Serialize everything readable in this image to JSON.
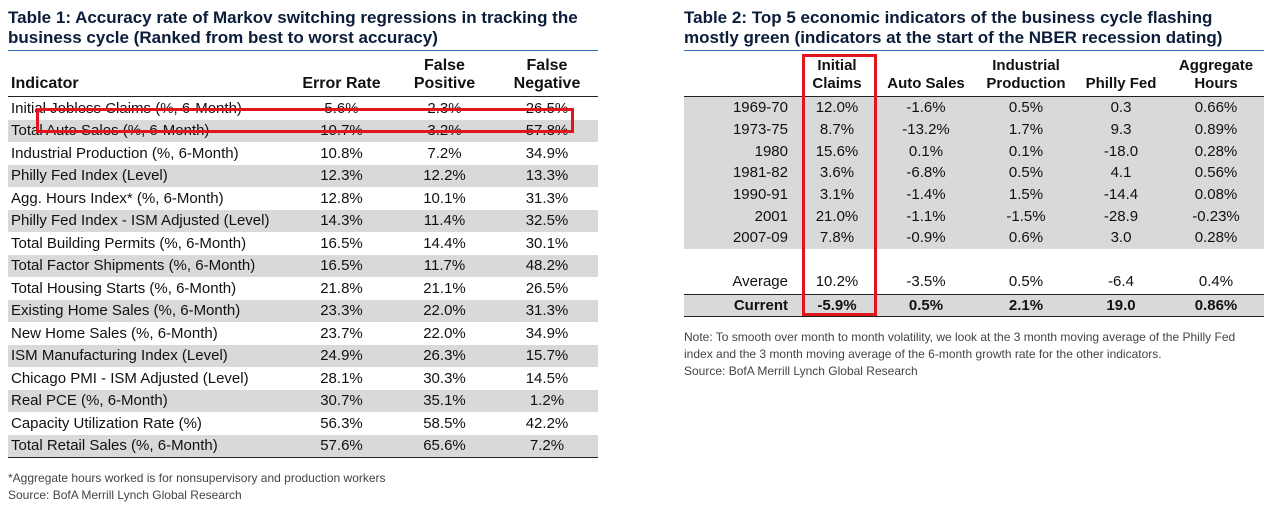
{
  "table1": {
    "title": "Table 1: Accuracy rate of Markov switching regressions in tracking the business cycle (Ranked from best to worst accuracy)",
    "headers": {
      "indicator": "Indicator",
      "error_rate": "Error Rate",
      "false_positive": "False Positive",
      "false_negative": "False Negative"
    },
    "rows": [
      {
        "indicator": "Initial Jobless Claims (%, 6-Month)",
        "error_rate": "5.6%",
        "false_positive": "2.3%",
        "false_negative": "26.5%"
      },
      {
        "indicator": "Total Auto Sales (%, 6-Month)",
        "error_rate": "10.7%",
        "false_positive": "3.2%",
        "false_negative": "57.8%"
      },
      {
        "indicator": "Industrial Production (%, 6-Month)",
        "error_rate": "10.8%",
        "false_positive": "7.2%",
        "false_negative": "34.9%"
      },
      {
        "indicator": "Philly Fed Index (Level)",
        "error_rate": "12.3%",
        "false_positive": "12.2%",
        "false_negative": "13.3%"
      },
      {
        "indicator": "Agg. Hours Index* (%, 6-Month)",
        "error_rate": "12.8%",
        "false_positive": "10.1%",
        "false_negative": "31.3%"
      },
      {
        "indicator": "Philly Fed Index - ISM Adjusted (Level)",
        "error_rate": "14.3%",
        "false_positive": "11.4%",
        "false_negative": "32.5%"
      },
      {
        "indicator": "Total Building Permits (%, 6-Month)",
        "error_rate": "16.5%",
        "false_positive": "14.4%",
        "false_negative": "30.1%"
      },
      {
        "indicator": "Total Factor Shipments (%, 6-Month)",
        "error_rate": "16.5%",
        "false_positive": "11.7%",
        "false_negative": "48.2%"
      },
      {
        "indicator": "Total Housing Starts (%, 6-Month)",
        "error_rate": "21.8%",
        "false_positive": "21.1%",
        "false_negative": "26.5%"
      },
      {
        "indicator": "Existing Home Sales (%, 6-Month)",
        "error_rate": "23.3%",
        "false_positive": "22.0%",
        "false_negative": "31.3%"
      },
      {
        "indicator": "New Home Sales (%, 6-Month)",
        "error_rate": "23.7%",
        "false_positive": "22.0%",
        "false_negative": "34.9%"
      },
      {
        "indicator": "ISM Manufacturing Index (Level)",
        "error_rate": "24.9%",
        "false_positive": "26.3%",
        "false_negative": "15.7%"
      },
      {
        "indicator": "Chicago PMI - ISM Adjusted (Level)",
        "error_rate": "28.1%",
        "false_positive": "30.3%",
        "false_negative": "14.5%"
      },
      {
        "indicator": "Real PCE (%, 6-Month)",
        "error_rate": "30.7%",
        "false_positive": "35.1%",
        "false_negative": "1.2%"
      },
      {
        "indicator": "Capacity Utilization Rate (%)",
        "error_rate": "56.3%",
        "false_positive": "58.5%",
        "false_negative": "42.2%"
      },
      {
        "indicator": "Total Retail Sales (%, 6-Month)",
        "error_rate": "57.6%",
        "false_positive": "65.6%",
        "false_negative": "7.2%"
      }
    ],
    "footnote": "*Aggregate hours worked is for nonsupervisory and production workers",
    "source": "Source: BofA Merrill Lynch Global Research"
  },
  "table2": {
    "title": "Table 2: Top 5 economic indicators of the business cycle flashing mostly green (indicators at the start of the NBER recession dating)",
    "headers": {
      "period": "",
      "initial_claims": "Initial Claims",
      "auto_sales": "Auto Sales",
      "industrial_production": "Industrial Production",
      "philly_fed": "Philly Fed",
      "aggregate_hours": "Aggregate Hours"
    },
    "rows": [
      {
        "period": "1969-70",
        "initial_claims": "12.0%",
        "auto_sales": "-1.6%",
        "industrial_production": "0.5%",
        "philly_fed": "0.3",
        "aggregate_hours": "0.66%"
      },
      {
        "period": "1973-75",
        "initial_claims": "8.7%",
        "auto_sales": "-13.2%",
        "industrial_production": "1.7%",
        "philly_fed": "9.3",
        "aggregate_hours": "0.89%"
      },
      {
        "period": "1980",
        "initial_claims": "15.6%",
        "auto_sales": "0.1%",
        "industrial_production": "0.1%",
        "philly_fed": "-18.0",
        "aggregate_hours": "0.28%"
      },
      {
        "period": "1981-82",
        "initial_claims": "3.6%",
        "auto_sales": "-6.8%",
        "industrial_production": "0.5%",
        "philly_fed": "4.1",
        "aggregate_hours": "0.56%"
      },
      {
        "period": "1990-91",
        "initial_claims": "3.1%",
        "auto_sales": "-1.4%",
        "industrial_production": "1.5%",
        "philly_fed": "-14.4",
        "aggregate_hours": "0.08%"
      },
      {
        "period": "2001",
        "initial_claims": "21.0%",
        "auto_sales": "-1.1%",
        "industrial_production": "-1.5%",
        "philly_fed": "-28.9",
        "aggregate_hours": "-0.23%"
      },
      {
        "period": "2007-09",
        "initial_claims": "7.8%",
        "auto_sales": "-0.9%",
        "industrial_production": "0.6%",
        "philly_fed": "3.0",
        "aggregate_hours": "0.28%"
      }
    ],
    "average": {
      "period": "Average",
      "initial_claims": "10.2%",
      "auto_sales": "-3.5%",
      "industrial_production": "0.5%",
      "philly_fed": "-6.4",
      "aggregate_hours": "0.4%"
    },
    "current": {
      "period": "Current",
      "initial_claims": "-5.9%",
      "auto_sales": "0.5%",
      "industrial_production": "2.1%",
      "philly_fed": "19.0",
      "aggregate_hours": "0.86%"
    },
    "note": "Note: To smooth over month to month volatility, we look at the 3 month moving average of the Philly Fed index and the 3 month moving average of the 6-month growth rate for the other indicators.",
    "source": "Source: BofA Merrill Lynch Global Research"
  },
  "colors": {
    "highlight": "#e2141c",
    "title_rule": "#2e6db4",
    "shade": "#d9d9d9"
  }
}
